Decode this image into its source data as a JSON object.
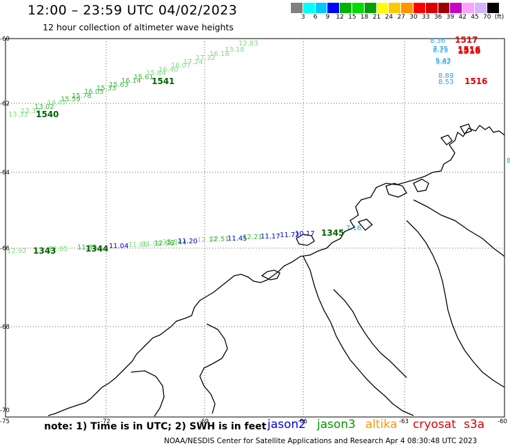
{
  "header": {
    "title": "12:00 – 23:59 UTC 04/02/2023",
    "subtitle": "12 hour collection of altimeter wave heights"
  },
  "legend": {
    "colors": [
      "#808080",
      "#00ffff",
      "#00c8ff",
      "#0000ff",
      "#00b400",
      "#00dc00",
      "#00a000",
      "#ffff00",
      "#ffc800",
      "#ff9600",
      "#ff0000",
      "#dc0000",
      "#a00000",
      "#c800c8",
      "#ffa0ff",
      "#d2b4ff",
      "#000000"
    ],
    "labels": [
      "",
      "3",
      "6",
      "9",
      "12",
      "15",
      "18",
      "21",
      "24",
      "27",
      "30",
      "33",
      "36",
      "39",
      "42",
      "45",
      "70",
      "(ft)"
    ]
  },
  "axes": {
    "lat_labels": [
      "-60",
      "-62",
      "-64",
      "-66",
      "-68",
      "-70"
    ],
    "lon_labels": [
      "-75",
      "-72",
      "-69",
      "-66",
      "-63",
      "-60"
    ]
  },
  "tracks": {
    "track_1540": {
      "time_labels": [
        "1540",
        "1541"
      ],
      "values": [
        "13.33",
        "13.38",
        "13.02",
        "14.47",
        "15.59",
        "15.78",
        "16.05",
        "15.33",
        "15.63",
        "16.14",
        "15.61",
        "15.84",
        "16.40",
        "16.07",
        "17.24",
        "17.32",
        "16.18",
        "13.18",
        "12.83"
      ]
    },
    "track_1343": {
      "time_labels": [
        "1343",
        "1344",
        "1345"
      ],
      "values": [
        "12.92",
        "12.65",
        "11.85",
        "11.04",
        "11.88",
        "11.08",
        "12.96",
        "12.44",
        "12.31",
        "11.20",
        "12.17",
        "12.51",
        "11.45",
        "12.21",
        "11.17",
        "11.72",
        "10.17",
        "7.16"
      ]
    },
    "track_1516": {
      "time_labels": [
        "1517",
        "1516",
        "1516",
        "1516"
      ],
      "values": [
        "8.36",
        "8.25",
        "7.75",
        "5.43",
        "5.82",
        "8.89",
        "8.53"
      ]
    }
  },
  "edge_label": "8",
  "note": "note:  1) Time is in UTC;  2) SWH is in feet",
  "satellites": [
    {
      "name": "jason2",
      "color": "#0000dd"
    },
    {
      "name": "jason3",
      "color": "#009600"
    },
    {
      "name": "altika",
      "color": "#ff9600"
    },
    {
      "name": "cryosat",
      "color": "#e00000"
    },
    {
      "name": "s3a",
      "color": "#c80000"
    }
  ],
  "footer": "NOAA/NESDIS Center for Satellite Applications and Research    Apr  4 08:30:48 UTC 2023"
}
